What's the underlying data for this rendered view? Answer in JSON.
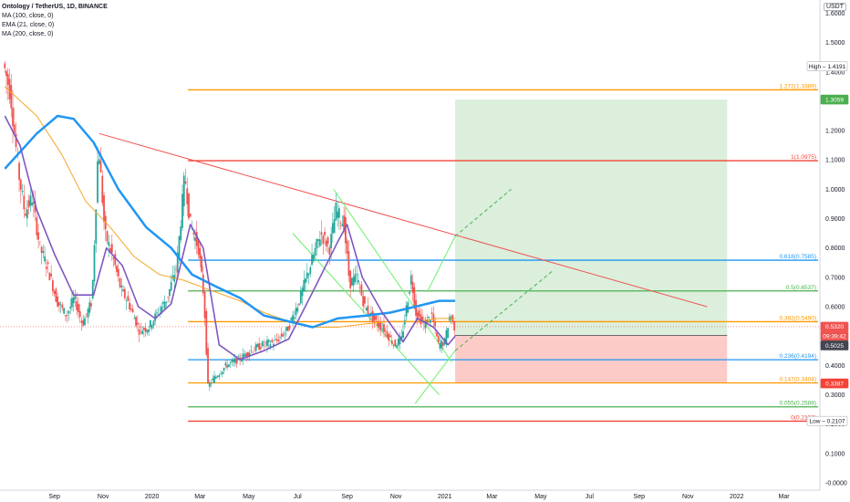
{
  "legend": {
    "title": "Ontology / TetherUS, 1D, BINANCE",
    "indicators": [
      "MA (100, close, 0)",
      "EMA (21, close, 0)",
      "MA (200, close, 0)"
    ]
  },
  "axis": {
    "currency": "USDT"
  },
  "chart_data": {
    "type": "line",
    "title": "Ontology / TetherUS, 1D, BINANCE",
    "ylim": [
      0,
      1.65
    ],
    "y_ticks": [
      "1.6000",
      "1.5000",
      "1.4000",
      "1.3000",
      "1.2000",
      "1.1000",
      "1.0000",
      "0.9000",
      "0.8000",
      "0.7000",
      "0.6000",
      "0.5000",
      "0.4000",
      "0.3000",
      "0.2000",
      "0.1000",
      "-0.0000"
    ],
    "x_ticks": [
      "Sep",
      "Nov",
      "2020",
      "Mar",
      "May",
      "Jul",
      "Sep",
      "Nov",
      "2021",
      "Mar",
      "May",
      "Jul",
      "Sep",
      "Nov",
      "2022",
      "Mar"
    ],
    "colors": {
      "up": "#26a69a",
      "down": "#ef5350",
      "ma100": "#2196f3",
      "ema21": "#7e57c2",
      "ma200": "#f5a623"
    },
    "price_series": [
      {
        "t": "2019-07-01",
        "v": 1.43
      },
      {
        "t": "2019-07-10",
        "v": 1.33
      },
      {
        "t": "2019-07-20",
        "v": 1.06
      },
      {
        "t": "2019-07-28",
        "v": 0.92
      },
      {
        "t": "2019-08-06",
        "v": 0.97
      },
      {
        "t": "2019-08-16",
        "v": 0.8
      },
      {
        "t": "2019-08-26",
        "v": 0.73
      },
      {
        "t": "2019-09-06",
        "v": 0.62
      },
      {
        "t": "2019-09-18",
        "v": 0.57
      },
      {
        "t": "2019-09-28",
        "v": 0.63
      },
      {
        "t": "2019-10-08",
        "v": 0.54
      },
      {
        "t": "2019-10-20",
        "v": 0.62
      },
      {
        "t": "2019-10-28",
        "v": 1.16
      },
      {
        "t": "2019-11-05",
        "v": 0.85
      },
      {
        "t": "2019-11-15",
        "v": 0.77
      },
      {
        "t": "2019-11-25",
        "v": 0.66
      },
      {
        "t": "2019-12-05",
        "v": 0.61
      },
      {
        "t": "2019-12-18",
        "v": 0.52
      },
      {
        "t": "2019-12-30",
        "v": 0.53
      },
      {
        "t": "2020-01-10",
        "v": 0.58
      },
      {
        "t": "2020-01-22",
        "v": 0.63
      },
      {
        "t": "2020-02-03",
        "v": 0.74
      },
      {
        "t": "2020-02-13",
        "v": 1.05
      },
      {
        "t": "2020-02-20",
        "v": 0.88
      },
      {
        "t": "2020-03-01",
        "v": 0.8
      },
      {
        "t": "2020-03-08",
        "v": 0.63
      },
      {
        "t": "2020-03-13",
        "v": 0.33
      },
      {
        "t": "2020-03-22",
        "v": 0.36
      },
      {
        "t": "2020-04-05",
        "v": 0.4
      },
      {
        "t": "2020-04-20",
        "v": 0.42
      },
      {
        "t": "2020-05-05",
        "v": 0.45
      },
      {
        "t": "2020-05-20",
        "v": 0.47
      },
      {
        "t": "2020-06-05",
        "v": 0.48
      },
      {
        "t": "2020-06-20",
        "v": 0.52
      },
      {
        "t": "2020-07-05",
        "v": 0.62
      },
      {
        "t": "2020-07-20",
        "v": 0.75
      },
      {
        "t": "2020-08-01",
        "v": 0.85
      },
      {
        "t": "2020-08-12",
        "v": 0.8
      },
      {
        "t": "2020-08-20",
        "v": 0.93
      },
      {
        "t": "2020-08-30",
        "v": 0.88
      },
      {
        "t": "2020-09-06",
        "v": 0.68
      },
      {
        "t": "2020-09-15",
        "v": 0.7
      },
      {
        "t": "2020-09-25",
        "v": 0.6
      },
      {
        "t": "2020-10-08",
        "v": 0.55
      },
      {
        "t": "2020-10-20",
        "v": 0.52
      },
      {
        "t": "2020-11-01",
        "v": 0.47
      },
      {
        "t": "2020-11-10",
        "v": 0.49
      },
      {
        "t": "2020-11-22",
        "v": 0.7
      },
      {
        "t": "2020-11-28",
        "v": 0.58
      },
      {
        "t": "2020-12-08",
        "v": 0.54
      },
      {
        "t": "2020-12-18",
        "v": 0.57
      },
      {
        "t": "2020-12-26",
        "v": 0.47
      },
      {
        "t": "2021-01-03",
        "v": 0.48
      },
      {
        "t": "2021-01-10",
        "v": 0.58
      },
      {
        "t": "2021-01-14",
        "v": 0.532
      }
    ],
    "ema21": [
      {
        "t": "2019-07-01",
        "v": 1.25
      },
      {
        "t": "2019-07-20",
        "v": 1.15
      },
      {
        "t": "2019-08-10",
        "v": 0.93
      },
      {
        "t": "2019-09-01",
        "v": 0.78
      },
      {
        "t": "2019-09-25",
        "v": 0.64
      },
      {
        "t": "2019-10-20",
        "v": 0.64
      },
      {
        "t": "2019-11-05",
        "v": 0.8
      },
      {
        "t": "2019-11-25",
        "v": 0.74
      },
      {
        "t": "2019-12-15",
        "v": 0.6
      },
      {
        "t": "2020-01-05",
        "v": 0.56
      },
      {
        "t": "2020-01-25",
        "v": 0.61
      },
      {
        "t": "2020-02-18",
        "v": 0.88
      },
      {
        "t": "2020-03-05",
        "v": 0.8
      },
      {
        "t": "2020-03-25",
        "v": 0.47
      },
      {
        "t": "2020-04-20",
        "v": 0.42
      },
      {
        "t": "2020-05-20",
        "v": 0.45
      },
      {
        "t": "2020-06-20",
        "v": 0.49
      },
      {
        "t": "2020-07-20",
        "v": 0.65
      },
      {
        "t": "2020-08-20",
        "v": 0.82
      },
      {
        "t": "2020-09-01",
        "v": 0.88
      },
      {
        "t": "2020-09-20",
        "v": 0.7
      },
      {
        "t": "2020-10-15",
        "v": 0.58
      },
      {
        "t": "2020-11-10",
        "v": 0.48
      },
      {
        "t": "2020-11-28",
        "v": 0.56
      },
      {
        "t": "2020-12-18",
        "v": 0.53
      },
      {
        "t": "2021-01-05",
        "v": 0.47
      },
      {
        "t": "2021-01-14",
        "v": 0.5
      }
    ],
    "ma100": [
      {
        "t": "2019-07-01",
        "v": 1.07
      },
      {
        "t": "2019-08-10",
        "v": 1.19
      },
      {
        "t": "2019-09-05",
        "v": 1.25
      },
      {
        "t": "2019-09-25",
        "v": 1.24
      },
      {
        "t": "2019-10-20",
        "v": 1.16
      },
      {
        "t": "2019-11-20",
        "v": 1.0
      },
      {
        "t": "2019-12-25",
        "v": 0.87
      },
      {
        "t": "2020-01-25",
        "v": 0.8
      },
      {
        "t": "2020-02-20",
        "v": 0.71
      },
      {
        "t": "2020-03-20",
        "v": 0.67
      },
      {
        "t": "2020-04-20",
        "v": 0.63
      },
      {
        "t": "2020-05-20",
        "v": 0.57
      },
      {
        "t": "2020-06-20",
        "v": 0.55
      },
      {
        "t": "2020-07-20",
        "v": 0.53
      },
      {
        "t": "2020-08-20",
        "v": 0.56
      },
      {
        "t": "2020-09-25",
        "v": 0.57
      },
      {
        "t": "2020-10-25",
        "v": 0.58
      },
      {
        "t": "2020-11-25",
        "v": 0.6
      },
      {
        "t": "2020-12-25",
        "v": 0.62
      },
      {
        "t": "2021-01-14",
        "v": 0.62
      }
    ],
    "ma200": [
      {
        "t": "2019-07-01",
        "v": 1.35
      },
      {
        "t": "2019-08-10",
        "v": 1.25
      },
      {
        "t": "2019-09-10",
        "v": 1.12
      },
      {
        "t": "2019-10-10",
        "v": 0.96
      },
      {
        "t": "2019-11-10",
        "v": 0.87
      },
      {
        "t": "2019-12-10",
        "v": 0.77
      },
      {
        "t": "2020-01-10",
        "v": 0.71
      },
      {
        "t": "2020-02-10",
        "v": 0.69
      },
      {
        "t": "2020-03-10",
        "v": 0.66
      },
      {
        "t": "2020-04-20",
        "v": 0.62
      },
      {
        "t": "2020-05-20",
        "v": 0.58
      },
      {
        "t": "2020-06-20",
        "v": 0.55
      },
      {
        "t": "2020-07-20",
        "v": 0.53
      },
      {
        "t": "2020-08-20",
        "v": 0.53
      },
      {
        "t": "2020-09-20",
        "v": 0.54
      },
      {
        "t": "2020-10-25",
        "v": 0.55
      },
      {
        "t": "2020-11-25",
        "v": 0.55
      },
      {
        "t": "2020-12-25",
        "v": 0.56
      },
      {
        "t": "2021-01-14",
        "v": 0.56
      }
    ],
    "fib_levels": [
      {
        "label": "1.272(1.3389)",
        "value": 1.3389,
        "color": "#ff9800"
      },
      {
        "label": "1(1.0975)",
        "value": 1.0975,
        "color": "#f44336"
      },
      {
        "label": "0.618(0.7585)",
        "value": 0.7585,
        "color": "#2196f3"
      },
      {
        "label": "0.5(0.6537)",
        "value": 0.6537,
        "color": "#4caf50"
      },
      {
        "label": "0.382(0.5490)",
        "value": 0.549,
        "color": "#ff9800"
      },
      {
        "label": "0.236(0.4194)",
        "value": 0.4194,
        "color": "#2196f3"
      },
      {
        "label": "0.147(0.3404)",
        "value": 0.3404,
        "color": "#ff9800"
      },
      {
        "label": "0.055(0.2588)",
        "value": 0.2588,
        "color": "#4caf50"
      },
      {
        "label": "0(0.2100)",
        "value": 0.21,
        "color": "#f44336"
      }
    ],
    "position": {
      "entry": 0.5025,
      "target": 1.3059,
      "stop": 0.3387,
      "start": "2021-01-14",
      "end": "2021-12-20"
    },
    "price_tags": [
      {
        "label": "High",
        "value": "1.4191",
        "y": 1.4191,
        "bg": "#ffffff",
        "fg": "#131722"
      },
      {
        "value": "1.3059",
        "y": 1.3059,
        "bg": "#4caf50",
        "fg": "#ffffff"
      },
      {
        "value": "0.5320",
        "y": 0.532,
        "bg": "#ef5350",
        "fg": "#ffffff"
      },
      {
        "value": "09:39:42",
        "y": 0.5,
        "bg": "#ef5350",
        "fg": "#ffffff"
      },
      {
        "value": "0.5025",
        "y": 0.468,
        "bg": "#434651",
        "fg": "#ffffff"
      },
      {
        "value": "0.3387",
        "y": 0.3387,
        "bg": "#f44336",
        "fg": "#ffffff"
      },
      {
        "label": "Low",
        "value": "0.2107",
        "y": 0.2107,
        "bg": "#ffffff",
        "fg": "#131722"
      }
    ]
  }
}
